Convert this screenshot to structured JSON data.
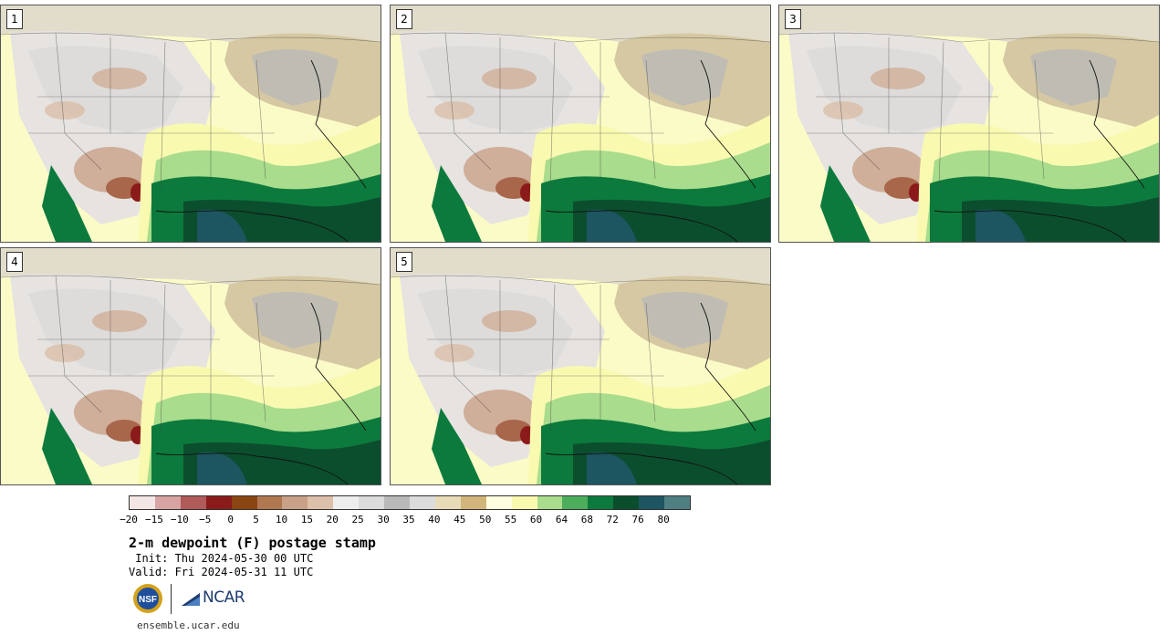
{
  "panels": [
    {
      "label": "1"
    },
    {
      "label": "2"
    },
    {
      "label": "3"
    },
    {
      "label": "4"
    },
    {
      "label": "5"
    }
  ],
  "colorbar": {
    "colors": [
      "#f5e6e6",
      "#d8a3a3",
      "#b05a5a",
      "#8b1a1a",
      "#8b4513",
      "#b07850",
      "#c9a088",
      "#ddc0aa",
      "#eeeeee",
      "#dcdcdc",
      "#b9b9b9",
      "#dcdcdc",
      "#e8dcb8",
      "#d2b57a",
      "#ffffe0",
      "#f9f9b0",
      "#a9dc8c",
      "#4cae5c",
      "#0c7a3c",
      "#0b4e2e",
      "#1d5560",
      "#4f7f80"
    ],
    "ticks": [
      "−20",
      "−15",
      "−10",
      "−5",
      "0",
      "5",
      "10",
      "15",
      "20",
      "25",
      "30",
      "35",
      "40",
      "45",
      "50",
      "55",
      "60",
      "64",
      "68",
      "72",
      "76",
      "80"
    ]
  },
  "title": "2-m dewpoint (F) postage stamp",
  "init": " Init: Thu 2024-05-30 00 UTC",
  "valid": "Valid: Fri 2024-05-31 11 UTC",
  "logos": {
    "nsf": "NSF",
    "ncar": "NCAR"
  },
  "url": "ensemble.ucar.edu"
}
